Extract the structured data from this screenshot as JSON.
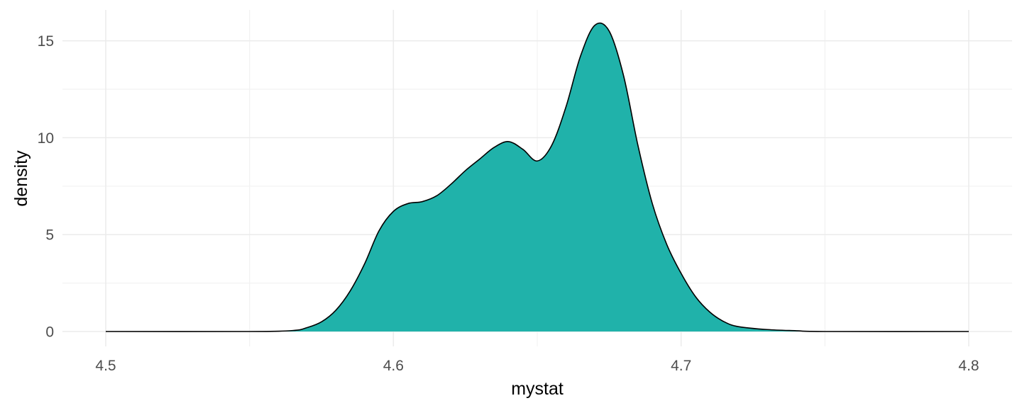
{
  "chart_data": {
    "type": "area",
    "title": "",
    "xlabel": "mystat",
    "ylabel": "density",
    "xlim": [
      4.5,
      4.8
    ],
    "ylim": [
      0,
      15.9
    ],
    "x_ticks": [
      4.5,
      4.6,
      4.7,
      4.8
    ],
    "x_tick_labels": [
      "4.5",
      "4.6",
      "4.7",
      "4.8"
    ],
    "y_ticks": [
      0,
      5,
      10,
      15
    ],
    "y_tick_labels": [
      "0",
      "5",
      "10",
      "15"
    ],
    "grid": true,
    "legend": "none",
    "fill_color": "#20b2aa",
    "outline_color": "#000000",
    "series": [
      {
        "x": [
          4.5,
          4.55,
          4.565,
          4.57,
          4.575,
          4.58,
          4.585,
          4.59,
          4.595,
          4.6,
          4.605,
          4.61,
          4.615,
          4.62,
          4.625,
          4.63,
          4.635,
          4.64,
          4.645,
          4.65,
          4.655,
          4.66,
          4.665,
          4.67,
          4.675,
          4.68,
          4.685,
          4.69,
          4.695,
          4.7,
          4.705,
          4.71,
          4.715,
          4.72,
          4.73,
          4.74,
          4.75,
          4.8
        ],
        "y": [
          0.0,
          0.0,
          0.05,
          0.2,
          0.5,
          1.1,
          2.1,
          3.5,
          5.2,
          6.2,
          6.6,
          6.7,
          7.0,
          7.6,
          8.3,
          8.9,
          9.5,
          9.8,
          9.4,
          8.8,
          9.6,
          11.6,
          14.2,
          15.8,
          15.5,
          13.2,
          9.6,
          6.6,
          4.5,
          3.0,
          1.8,
          1.0,
          0.5,
          0.25,
          0.1,
          0.04,
          0.0,
          0.0
        ]
      }
    ]
  }
}
